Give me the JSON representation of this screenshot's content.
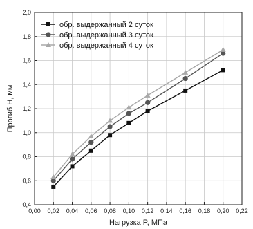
{
  "chart_data": {
    "type": "line",
    "xlabel": "Нагрузка P, МПа",
    "ylabel": "Прогиб H, мм",
    "xlim": [
      0.0,
      0.22
    ],
    "ylim": [
      0.4,
      2.0
    ],
    "x_ticks": [
      "0,00",
      "0,02",
      "0,04",
      "0,06",
      "0,08",
      "0,10",
      "0,12",
      "0,14",
      "0,16",
      "0,18",
      "0,20",
      "0,22"
    ],
    "y_ticks": [
      "0,4",
      "0,6",
      "0,8",
      "1,0",
      "1,2",
      "1,4",
      "1,6",
      "1,8",
      "2,0"
    ],
    "grid": true,
    "legend_position": "top-left",
    "series": [
      {
        "name": "обр. выдержанный 2 суток",
        "marker": "square",
        "color": "#111111",
        "x": [
          0.02,
          0.04,
          0.06,
          0.08,
          0.1,
          0.12,
          0.16,
          0.2
        ],
        "y": [
          0.55,
          0.72,
          0.85,
          0.98,
          1.08,
          1.18,
          1.35,
          1.52
        ]
      },
      {
        "name": "обр. выдержанный 3 суток",
        "marker": "circle",
        "color": "#555555",
        "x": [
          0.02,
          0.04,
          0.06,
          0.08,
          0.1,
          0.12,
          0.16,
          0.2
        ],
        "y": [
          0.6,
          0.78,
          0.92,
          1.05,
          1.16,
          1.25,
          1.45,
          1.66
        ]
      },
      {
        "name": "обр. выдержанный 4 суток",
        "marker": "triangle",
        "color": "#a8a8a8",
        "x": [
          0.02,
          0.04,
          0.06,
          0.08,
          0.1,
          0.12,
          0.16,
          0.2
        ],
        "y": [
          0.63,
          0.82,
          0.97,
          1.1,
          1.21,
          1.31,
          1.5,
          1.69
        ]
      }
    ]
  }
}
